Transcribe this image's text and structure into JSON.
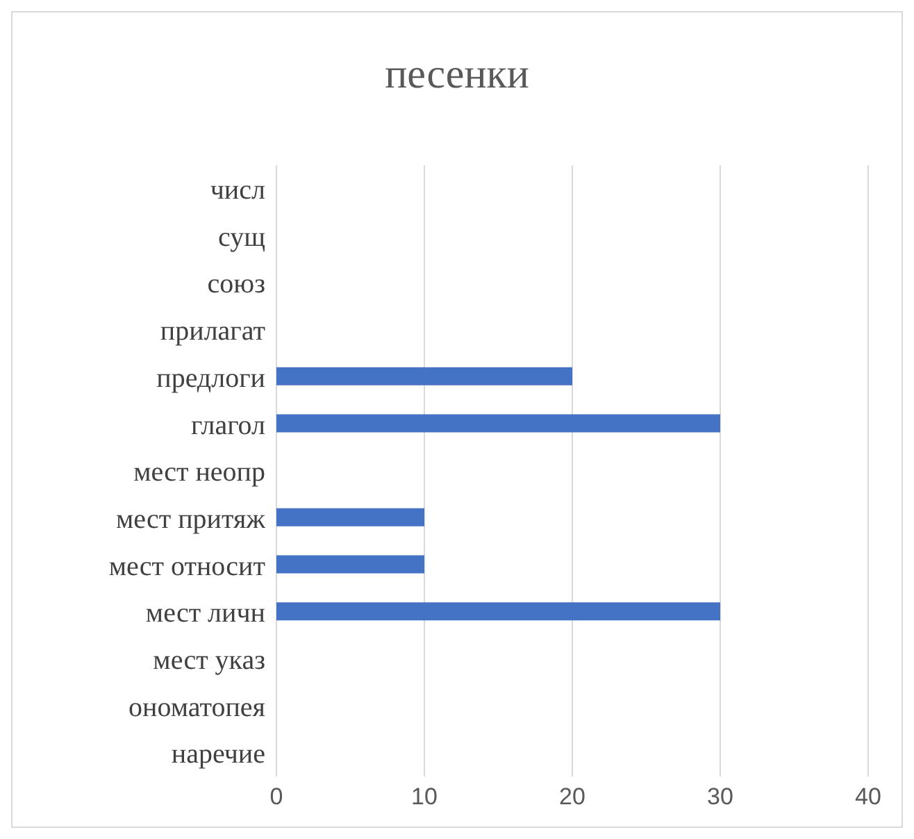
{
  "chart_data": {
    "type": "bar",
    "orientation": "horizontal",
    "title": "песенки",
    "categories": [
      "числ",
      "сущ",
      "союз",
      "прилагат",
      "предлоги",
      "глагол",
      "мест неопр",
      "мест притяж",
      "мест относит",
      "мест личн",
      "мест указ",
      "ономатопея",
      "наречие"
    ],
    "values": [
      0,
      0,
      0,
      0,
      20,
      30,
      0,
      10,
      10,
      30,
      0,
      0,
      0
    ],
    "color": "#4472c4",
    "xlim": [
      0,
      40
    ],
    "xticks": [
      0,
      10,
      20,
      30,
      40
    ],
    "grid": "x"
  }
}
